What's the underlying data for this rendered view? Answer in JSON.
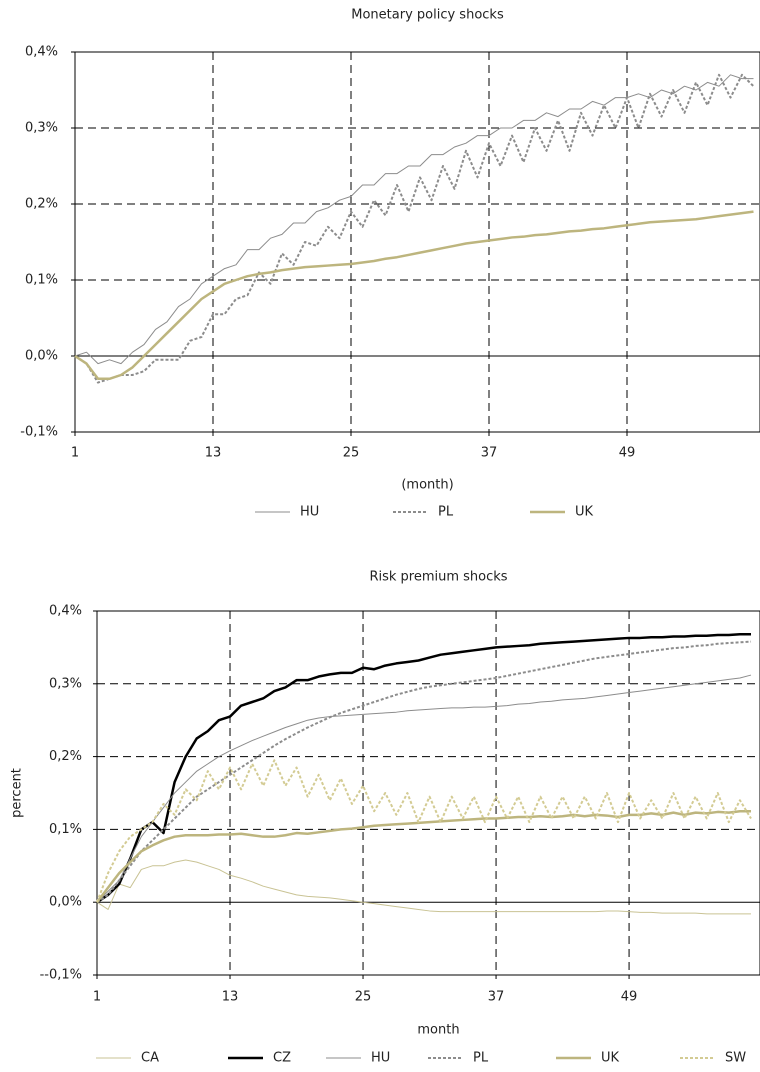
{
  "chart_data": [
    {
      "type": "line",
      "title": "Monetary policy shocks",
      "xlabel": "(month)",
      "x": [
        1,
        2,
        3,
        4,
        5,
        6,
        7,
        8,
        9,
        10,
        11,
        12,
        13,
        14,
        15,
        16,
        17,
        18,
        19,
        20,
        21,
        22,
        23,
        24,
        25,
        26,
        27,
        28,
        29,
        30,
        31,
        32,
        33,
        34,
        35,
        36,
        37,
        38,
        39,
        40,
        41,
        42,
        43,
        44,
        45,
        46,
        47,
        48,
        49,
        50,
        51,
        52,
        53,
        54,
        55,
        56,
        57,
        58,
        59,
        60
      ],
      "xlim": [
        1,
        60
      ],
      "xticks": [
        1,
        13,
        25,
        37,
        49
      ],
      "ylim": [
        -0.1,
        0.4
      ],
      "yticks": [
        {
          "value": -0.1,
          "label": "-0,1%"
        },
        {
          "value": 0,
          "label": "0,0%"
        },
        {
          "value": 0.1,
          "label": "0,1%"
        },
        {
          "value": 0.2,
          "label": "0,2%"
        },
        {
          "value": 0.3,
          "label": "0,3%"
        },
        {
          "value": 0.4,
          "label": "0,4%"
        }
      ],
      "grid": true,
      "series": [
        {
          "name": "HU",
          "color": "#8c8c8c",
          "linestyle": "solid",
          "values": [
            0,
            0.005,
            -0.01,
            -0.005,
            -0.01,
            0.005,
            0.015,
            0.035,
            0.045,
            0.065,
            0.075,
            0.095,
            0.105,
            0.115,
            0.12,
            0.14,
            0.14,
            0.155,
            0.16,
            0.175,
            0.175,
            0.19,
            0.195,
            0.205,
            0.21,
            0.225,
            0.225,
            0.24,
            0.24,
            0.25,
            0.25,
            0.265,
            0.265,
            0.275,
            0.28,
            0.29,
            0.29,
            0.3,
            0.3,
            0.31,
            0.31,
            0.32,
            0.315,
            0.325,
            0.325,
            0.335,
            0.33,
            0.34,
            0.34,
            0.345,
            0.34,
            0.35,
            0.345,
            0.355,
            0.35,
            0.36,
            0.355,
            0.37,
            0.365,
            0.365
          ]
        },
        {
          "name": "PL",
          "color": "#8c8c8c",
          "linestyle": "dashed",
          "values": [
            0,
            -0.01,
            -0.035,
            -0.03,
            -0.025,
            -0.025,
            -0.02,
            -0.005,
            -0.005,
            -0.005,
            0.02,
            0.025,
            0.055,
            0.055,
            0.075,
            0.08,
            0.11,
            0.095,
            0.135,
            0.12,
            0.15,
            0.145,
            0.17,
            0.155,
            0.19,
            0.17,
            0.205,
            0.185,
            0.225,
            0.19,
            0.235,
            0.205,
            0.25,
            0.22,
            0.27,
            0.235,
            0.28,
            0.25,
            0.29,
            0.255,
            0.3,
            0.27,
            0.31,
            0.27,
            0.32,
            0.29,
            0.33,
            0.3,
            0.34,
            0.3,
            0.345,
            0.315,
            0.35,
            0.32,
            0.36,
            0.33,
            0.37,
            0.34,
            0.37,
            0.355
          ]
        },
        {
          "name": "UK",
          "color": "#bdb57e",
          "linestyle": "solid",
          "values": [
            0,
            -0.01,
            -0.03,
            -0.03,
            -0.025,
            -0.015,
            0,
            0.015,
            0.03,
            0.045,
            0.06,
            0.075,
            0.085,
            0.095,
            0.1,
            0.105,
            0.108,
            0.11,
            0.113,
            0.115,
            0.117,
            0.118,
            0.119,
            0.12,
            0.121,
            0.123,
            0.125,
            0.128,
            0.13,
            0.133,
            0.136,
            0.139,
            0.142,
            0.145,
            0.148,
            0.15,
            0.152,
            0.154,
            0.156,
            0.157,
            0.159,
            0.16,
            0.162,
            0.164,
            0.165,
            0.167,
            0.168,
            0.17,
            0.172,
            0.174,
            0.176,
            0.177,
            0.178,
            0.179,
            0.18,
            0.182,
            0.184,
            0.186,
            0.188,
            0.19
          ]
        }
      ]
    },
    {
      "type": "line",
      "title": "Risk premium shocks",
      "xlabel": "month",
      "ylabel": "percent",
      "x": [
        1,
        2,
        3,
        4,
        5,
        6,
        7,
        8,
        9,
        10,
        11,
        12,
        13,
        14,
        15,
        16,
        17,
        18,
        19,
        20,
        21,
        22,
        23,
        24,
        25,
        26,
        27,
        28,
        29,
        30,
        31,
        32,
        33,
        34,
        35,
        36,
        37,
        38,
        39,
        40,
        41,
        42,
        43,
        44,
        45,
        46,
        47,
        48,
        49,
        50,
        51,
        52,
        53,
        54,
        55,
        56,
        57,
        58,
        59,
        60
      ],
      "xlim": [
        1,
        60
      ],
      "xticks": [
        1,
        13,
        25,
        37,
        49
      ],
      "ylim": [
        -0.1,
        0.4
      ],
      "yticks": [
        {
          "value": -0.1,
          "label": "--0,1%"
        },
        {
          "value": 0,
          "label": "0,0%"
        },
        {
          "value": 0.1,
          "label": "0,1%"
        },
        {
          "value": 0.2,
          "label": "0,2%"
        },
        {
          "value": 0.3,
          "label": "0,3%"
        },
        {
          "value": 0.4,
          "label": "0,4%"
        }
      ],
      "grid": true,
      "series": [
        {
          "name": "CA",
          "color": "#c9c394",
          "linestyle": "solid",
          "values": [
            0,
            -0.01,
            0.025,
            0.02,
            0.045,
            0.05,
            0.05,
            0.055,
            0.058,
            0.055,
            0.05,
            0.045,
            0.037,
            0.033,
            0.028,
            0.022,
            0.018,
            0.014,
            0.01,
            0.008,
            0.007,
            0.006,
            0.004,
            0.002,
            0,
            -0.002,
            -0.004,
            -0.006,
            -0.008,
            -0.01,
            -0.012,
            -0.013,
            -0.013,
            -0.013,
            -0.013,
            -0.013,
            -0.013,
            -0.013,
            -0.013,
            -0.013,
            -0.013,
            -0.013,
            -0.013,
            -0.013,
            -0.013,
            -0.013,
            -0.012,
            -0.012,
            -0.013,
            -0.014,
            -0.014,
            -0.015,
            -0.015,
            -0.015,
            -0.015,
            -0.016,
            -0.016,
            -0.016,
            -0.016,
            -0.016
          ]
        },
        {
          "name": "CZ",
          "color": "#000000",
          "linestyle": "solid",
          "values": [
            0,
            0.01,
            0.025,
            0.06,
            0.1,
            0.11,
            0.095,
            0.165,
            0.2,
            0.225,
            0.235,
            0.25,
            0.255,
            0.27,
            0.275,
            0.28,
            0.29,
            0.295,
            0.305,
            0.305,
            0.31,
            0.313,
            0.315,
            0.315,
            0.322,
            0.32,
            0.325,
            0.328,
            0.33,
            0.332,
            0.336,
            0.34,
            0.342,
            0.344,
            0.346,
            0.348,
            0.35,
            0.351,
            0.352,
            0.353,
            0.355,
            0.356,
            0.357,
            0.358,
            0.359,
            0.36,
            0.361,
            0.362,
            0.363,
            0.363,
            0.364,
            0.364,
            0.365,
            0.365,
            0.366,
            0.366,
            0.367,
            0.367,
            0.368,
            0.368
          ]
        },
        {
          "name": "HU",
          "color": "#8c8c8c",
          "linestyle": "solid",
          "values": [
            0,
            0.015,
            0.03,
            0.06,
            0.09,
            0.11,
            0.13,
            0.15,
            0.165,
            0.18,
            0.19,
            0.2,
            0.208,
            0.215,
            0.222,
            0.228,
            0.234,
            0.24,
            0.245,
            0.25,
            0.253,
            0.255,
            0.256,
            0.257,
            0.258,
            0.259,
            0.26,
            0.261,
            0.263,
            0.264,
            0.265,
            0.266,
            0.267,
            0.267,
            0.268,
            0.268,
            0.269,
            0.27,
            0.272,
            0.273,
            0.275,
            0.276,
            0.278,
            0.279,
            0.28,
            0.282,
            0.284,
            0.286,
            0.288,
            0.29,
            0.292,
            0.294,
            0.296,
            0.298,
            0.3,
            0.302,
            0.304,
            0.306,
            0.308,
            0.312
          ]
        },
        {
          "name": "PL",
          "color": "#8c8c8c",
          "linestyle": "dashed",
          "values": [
            0,
            0.01,
            0.03,
            0.05,
            0.07,
            0.085,
            0.1,
            0.115,
            0.13,
            0.145,
            0.155,
            0.165,
            0.175,
            0.185,
            0.195,
            0.205,
            0.215,
            0.224,
            0.232,
            0.24,
            0.247,
            0.254,
            0.26,
            0.265,
            0.27,
            0.275,
            0.28,
            0.285,
            0.289,
            0.293,
            0.296,
            0.298,
            0.3,
            0.302,
            0.304,
            0.306,
            0.308,
            0.311,
            0.314,
            0.317,
            0.32,
            0.323,
            0.326,
            0.329,
            0.332,
            0.335,
            0.337,
            0.339,
            0.341,
            0.343,
            0.345,
            0.347,
            0.349,
            0.35,
            0.352,
            0.353,
            0.355,
            0.356,
            0.357,
            0.358
          ]
        },
        {
          "name": "UK",
          "color": "#bdb57e",
          "linestyle": "solid",
          "values": [
            0,
            0.02,
            0.04,
            0.055,
            0.07,
            0.078,
            0.085,
            0.09,
            0.092,
            0.092,
            0.092,
            0.093,
            0.093,
            0.094,
            0.092,
            0.09,
            0.09,
            0.092,
            0.095,
            0.094,
            0.096,
            0.098,
            0.1,
            0.101,
            0.103,
            0.105,
            0.106,
            0.107,
            0.108,
            0.109,
            0.11,
            0.111,
            0.112,
            0.113,
            0.114,
            0.115,
            0.115,
            0.116,
            0.117,
            0.117,
            0.118,
            0.117,
            0.118,
            0.12,
            0.118,
            0.12,
            0.119,
            0.117,
            0.12,
            0.12,
            0.122,
            0.12,
            0.123,
            0.12,
            0.123,
            0.122,
            0.124,
            0.123,
            0.125,
            0.125
          ]
        },
        {
          "name": "SW",
          "color": "#d3cb93",
          "linestyle": "dashed",
          "values": [
            0,
            0.04,
            0.07,
            0.09,
            0.1,
            0.11,
            0.135,
            0.12,
            0.155,
            0.14,
            0.18,
            0.155,
            0.185,
            0.155,
            0.19,
            0.16,
            0.195,
            0.16,
            0.185,
            0.145,
            0.175,
            0.14,
            0.17,
            0.135,
            0.16,
            0.125,
            0.15,
            0.12,
            0.15,
            0.11,
            0.145,
            0.11,
            0.145,
            0.115,
            0.145,
            0.11,
            0.145,
            0.115,
            0.145,
            0.11,
            0.145,
            0.115,
            0.145,
            0.115,
            0.145,
            0.115,
            0.15,
            0.11,
            0.15,
            0.115,
            0.14,
            0.115,
            0.15,
            0.115,
            0.145,
            0.115,
            0.15,
            0.11,
            0.14,
            0.115
          ]
        }
      ]
    }
  ]
}
